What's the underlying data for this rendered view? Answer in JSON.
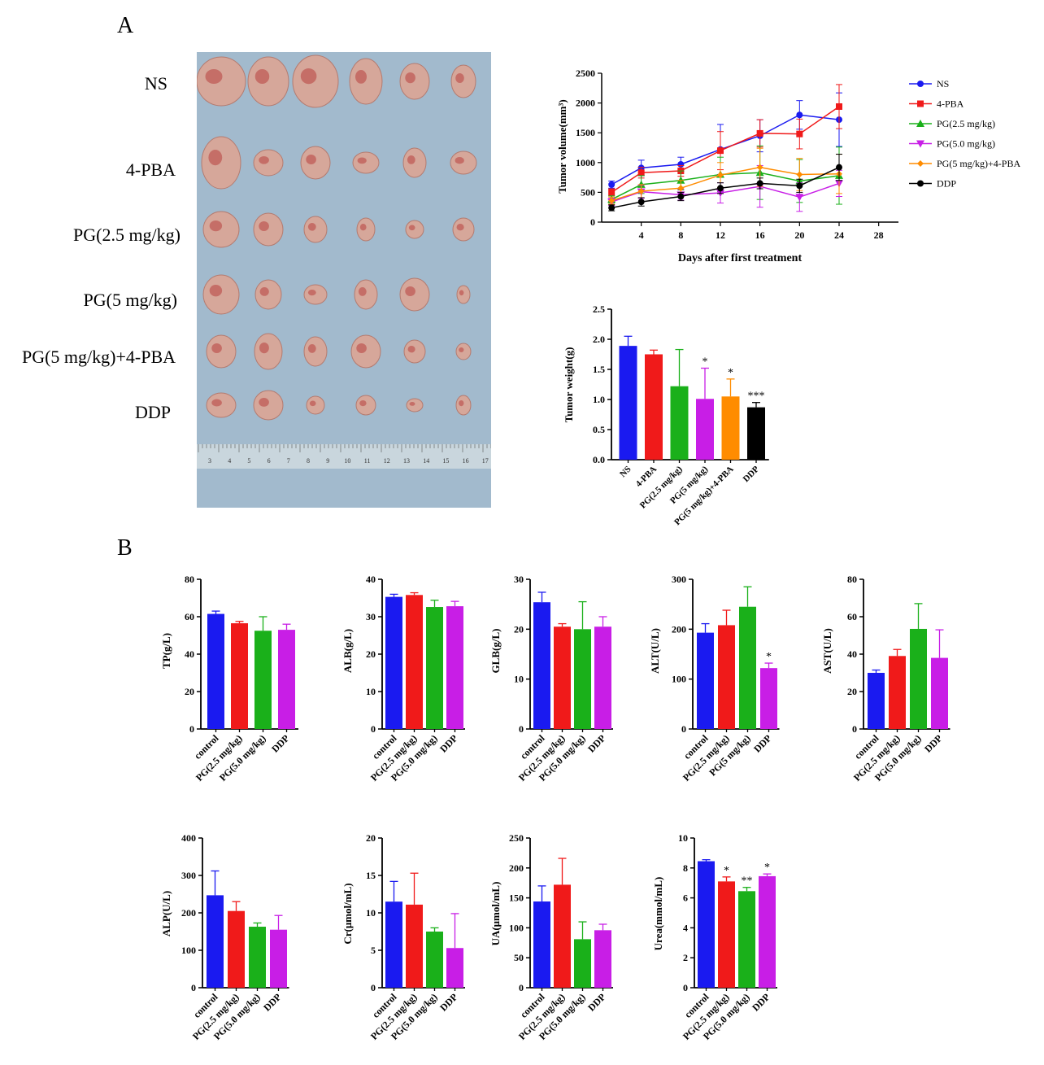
{
  "panels": {
    "a": "A",
    "b": "B"
  },
  "photo_labels": [
    "NS",
    "4-PBA",
    "PG(2.5 mg/kg)",
    "PG(5 mg/kg)",
    "PG(5 mg/kg)+4-PBA",
    "DDP"
  ],
  "ruler_ticks": [
    "3",
    "4",
    "5",
    "6",
    "7",
    "8",
    "9",
    "10",
    "11",
    "12",
    "13",
    "14",
    "15",
    "16",
    "17"
  ],
  "colors": {
    "blue": "#1a1af0",
    "red": "#f01a1a",
    "green": "#1ab01a",
    "purple": "#c81ee6",
    "orange": "#ff8c00",
    "black": "#000000"
  },
  "chart_data": [
    {
      "id": "volume",
      "type": "line",
      "title": "",
      "xlabel": "Days after first treatment",
      "ylabel": "Tumor volume(mm³)",
      "xlim": [
        0,
        30
      ],
      "ylim": [
        0,
        2500
      ],
      "xticks": [
        4,
        8,
        12,
        16,
        20,
        24,
        28
      ],
      "yticks": [
        0,
        500,
        1000,
        1500,
        2000,
        2500
      ],
      "x": [
        1,
        4,
        8,
        12,
        16,
        20,
        24
      ],
      "legend": "right",
      "series": [
        {
          "name": "NS",
          "color": "#1a1af0",
          "marker": "circle",
          "values": [
            630,
            910,
            970,
            1220,
            1450,
            1800,
            1720
          ],
          "errors": [
            60,
            130,
            120,
            420,
            270,
            240,
            450
          ]
        },
        {
          "name": "4-PBA",
          "color": "#f01a1a",
          "marker": "square",
          "values": [
            500,
            830,
            860,
            1200,
            1490,
            1480,
            1940
          ],
          "errors": [
            60,
            90,
            90,
            320,
            230,
            250,
            370
          ]
        },
        {
          "name": "PG(2.5 mg/kg)",
          "color": "#1ab01a",
          "marker": "triangle",
          "values": [
            380,
            630,
            700,
            800,
            830,
            690,
            780
          ],
          "errors": [
            60,
            150,
            160,
            290,
            450,
            360,
            480
          ]
        },
        {
          "name": "PG(5.0 mg/kg)",
          "color": "#c81ee6",
          "marker": "triangle-down",
          "values": [
            340,
            510,
            460,
            490,
            600,
            420,
            650
          ],
          "errors": [
            60,
            110,
            90,
            170,
            350,
            240,
            220
          ]
        },
        {
          "name": "PG(5 mg/kg)+4-PBA",
          "color": "#ff8c00",
          "marker": "diamond",
          "values": [
            360,
            520,
            570,
            790,
            920,
            800,
            810
          ],
          "errors": [
            60,
            110,
            130,
            210,
            320,
            270,
            330
          ]
        },
        {
          "name": "DDP",
          "color": "#000000",
          "marker": "circle",
          "values": [
            240,
            340,
            430,
            570,
            650,
            610,
            920
          ],
          "errors": [
            50,
            70,
            70,
            90,
            90,
            110,
            220
          ]
        }
      ]
    },
    {
      "id": "weight",
      "type": "bar",
      "ylabel": "Tumor weight(g)",
      "ylim": [
        0,
        2.5
      ],
      "yticks": [
        "0.0",
        "0.5",
        "1.0",
        "1.5",
        "2.0",
        "2.5"
      ],
      "categories": [
        "NS",
        "4-PBA",
        "PG(2.5 mg/kg)",
        "PG(5 mg/kg)",
        "PG(5 mg/kg)+4-PBA",
        "DDP"
      ],
      "values": [
        1.89,
        1.75,
        1.22,
        1.01,
        1.05,
        0.87
      ],
      "errors": [
        0.16,
        0.07,
        0.61,
        0.51,
        0.29,
        0.08
      ],
      "colors": [
        "#1a1af0",
        "#f01a1a",
        "#1ab01a",
        "#c81ee6",
        "#ff8c00",
        "#000000"
      ],
      "annotations": [
        "",
        "",
        "",
        "*",
        "*",
        "***"
      ]
    },
    {
      "id": "tp",
      "type": "bar",
      "ylabel": "TP(g/L)",
      "ylim": [
        0,
        80
      ],
      "yticks": [
        "0",
        "20",
        "40",
        "60",
        "80"
      ],
      "categories": [
        "control",
        "PG(2.5 mg/kg)",
        "PG(5.0 mg/kg)",
        "DDP"
      ],
      "values": [
        61.5,
        56.5,
        52.5,
        53
      ],
      "errors": [
        1.5,
        1,
        7.5,
        3
      ],
      "colors": [
        "#1a1af0",
        "#f01a1a",
        "#1ab01a",
        "#c81ee6"
      ],
      "annotations": [
        "",
        "",
        "",
        ""
      ]
    },
    {
      "id": "alb",
      "type": "bar",
      "ylabel": "ALB(g/L)",
      "ylim": [
        0,
        40
      ],
      "yticks": [
        "0",
        "10",
        "20",
        "30",
        "40"
      ],
      "categories": [
        "control",
        "PG(2.5 mg/kg)",
        "PG(5.0 mg/kg)",
        "DDP"
      ],
      "values": [
        35.3,
        35.8,
        32.6,
        32.8
      ],
      "errors": [
        0.7,
        0.6,
        1.8,
        1.3
      ],
      "colors": [
        "#1a1af0",
        "#f01a1a",
        "#1ab01a",
        "#c81ee6"
      ],
      "annotations": [
        "",
        "",
        "",
        ""
      ]
    },
    {
      "id": "glb",
      "type": "bar",
      "ylabel": "GLB(g/L)",
      "ylim": [
        0,
        30
      ],
      "yticks": [
        "0",
        "10",
        "20",
        "30"
      ],
      "categories": [
        "control",
        "PG(2.5 mg/kg)",
        "PG(5.0 mg/kg)",
        "DDP"
      ],
      "values": [
        25.4,
        20.5,
        20,
        20.5
      ],
      "errors": [
        2,
        0.6,
        5.5,
        2
      ],
      "colors": [
        "#1a1af0",
        "#f01a1a",
        "#1ab01a",
        "#c81ee6"
      ],
      "annotations": [
        "",
        "",
        "",
        ""
      ]
    },
    {
      "id": "alt",
      "type": "bar",
      "ylabel": "ALT(U/L)",
      "ylim": [
        0,
        300
      ],
      "yticks": [
        "0",
        "100",
        "200",
        "300"
      ],
      "categories": [
        "control",
        "PG(2.5 mg/kg)",
        "PG(5 mg/kg)",
        "DDP"
      ],
      "values": [
        193,
        208,
        245,
        122
      ],
      "errors": [
        18,
        30,
        40,
        10
      ],
      "colors": [
        "#1a1af0",
        "#f01a1a",
        "#1ab01a",
        "#c81ee6"
      ],
      "annotations": [
        "",
        "",
        "",
        "*"
      ]
    },
    {
      "id": "ast",
      "type": "bar",
      "ylabel": "AST(U/L)",
      "ylim": [
        0,
        80
      ],
      "yticks": [
        "0",
        "20",
        "40",
        "60",
        "80"
      ],
      "categories": [
        "control",
        "PG(2.5 mg/kg)",
        "PG(5.0 mg/kg)",
        "DDP"
      ],
      "values": [
        30,
        39,
        53.5,
        38
      ],
      "errors": [
        1.5,
        3.5,
        13.5,
        15
      ],
      "colors": [
        "#1a1af0",
        "#f01a1a",
        "#1ab01a",
        "#c81ee6"
      ],
      "annotations": [
        "",
        "",
        "",
        ""
      ]
    },
    {
      "id": "alp",
      "type": "bar",
      "ylabel": "ALP(U/L)",
      "ylim": [
        0,
        400
      ],
      "yticks": [
        "0",
        "100",
        "200",
        "300",
        "400"
      ],
      "categories": [
        "control",
        "PG(2.5 mg/kg)",
        "PG(5.0 mg/kg)",
        "DDP"
      ],
      "values": [
        247,
        205,
        163,
        155
      ],
      "errors": [
        65,
        25,
        10,
        38
      ],
      "colors": [
        "#1a1af0",
        "#f01a1a",
        "#1ab01a",
        "#c81ee6"
      ],
      "annotations": [
        "",
        "",
        "",
        ""
      ]
    },
    {
      "id": "cr",
      "type": "bar",
      "ylabel": "Cr(μmol/mL)",
      "ylim": [
        0,
        20
      ],
      "yticks": [
        "0",
        "5",
        "10",
        "15",
        "20"
      ],
      "categories": [
        "control",
        "PG(2.5 mg/kg)",
        "PG(5.0 mg/kg)",
        "DDP"
      ],
      "values": [
        11.5,
        11.1,
        7.5,
        5.3
      ],
      "errors": [
        2.7,
        4.2,
        0.5,
        4.6
      ],
      "colors": [
        "#1a1af0",
        "#f01a1a",
        "#1ab01a",
        "#c81ee6"
      ],
      "annotations": [
        "",
        "",
        "",
        ""
      ]
    },
    {
      "id": "ua",
      "type": "bar",
      "ylabel": "UA(μmol/mL)",
      "ylim": [
        0,
        250
      ],
      "yticks": [
        "0",
        "50",
        "100",
        "150",
        "200",
        "250"
      ],
      "categories": [
        "control",
        "PG(2.5 mg/kg)",
        "PG(5.0 mg/kg)",
        "DDP"
      ],
      "values": [
        144,
        172,
        81,
        96
      ],
      "errors": [
        26,
        44,
        29,
        10
      ],
      "colors": [
        "#1a1af0",
        "#f01a1a",
        "#1ab01a",
        "#c81ee6"
      ],
      "annotations": [
        "",
        "",
        "",
        ""
      ]
    },
    {
      "id": "urea",
      "type": "bar",
      "ylabel": "Urea(mmol/mL)",
      "ylim": [
        0,
        10
      ],
      "yticks": [
        "0",
        "2",
        "4",
        "6",
        "8",
        "10"
      ],
      "categories": [
        "control",
        "PG(2.5 mg/kg)",
        "PG(5.0 mg/kg)",
        "DDP"
      ],
      "values": [
        8.45,
        7.1,
        6.45,
        7.45
      ],
      "errors": [
        0.1,
        0.3,
        0.25,
        0.15
      ],
      "colors": [
        "#1a1af0",
        "#f01a1a",
        "#1ab01a",
        "#c81ee6"
      ],
      "annotations": [
        "",
        "*",
        "**",
        "*"
      ]
    }
  ]
}
